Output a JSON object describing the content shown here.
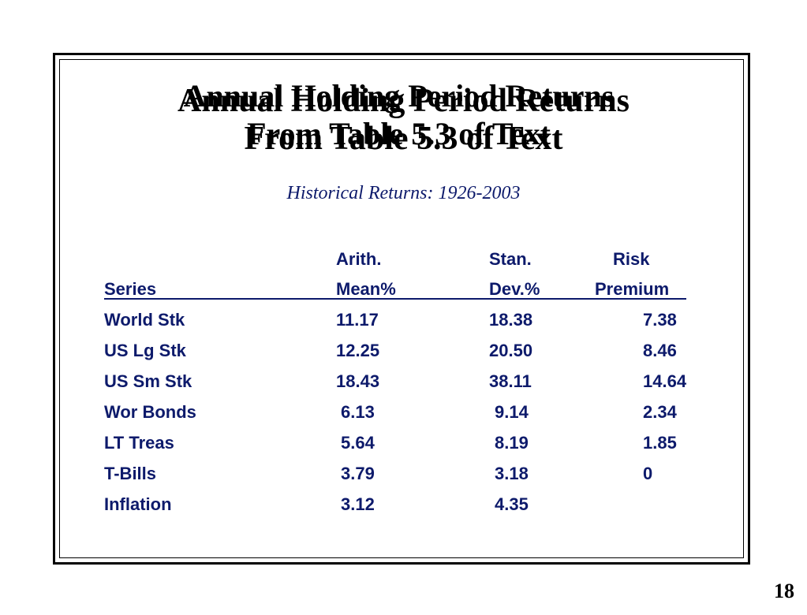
{
  "slide": {
    "title_line1": "Annual Holding Period Returns",
    "title_line2": "From Table 5.3 of Text",
    "subtitle": "Historical Returns: 1926-2003",
    "page_number": "18"
  },
  "table": {
    "header_top": [
      "",
      "Arith.",
      "Stan.",
      "Risk"
    ],
    "header_bottom": [
      "Series",
      "Mean%",
      "Dev.%",
      "Premium"
    ],
    "rows": [
      {
        "series": "World Stk",
        "mean": "11.17",
        "dev": "18.38",
        "premium": "7.38"
      },
      {
        "series": "US Lg Stk",
        "mean": "12.25",
        "dev": "20.50",
        "premium": "8.46"
      },
      {
        "series": "US Sm Stk",
        "mean": "18.43",
        "dev": "38.11",
        "premium": "14.64"
      },
      {
        "series": "Wor Bonds",
        "mean": "6.13",
        "dev": "9.14",
        "premium": "2.34"
      },
      {
        "series": "LT Treas",
        "mean": "5.64",
        "dev": "8.19",
        "premium": "1.85"
      },
      {
        "series": "T-Bills",
        "mean": "3.79",
        "dev": "3.18",
        "premium": "0"
      },
      {
        "series": "Inflation",
        "mean": "3.12",
        "dev": "4.35",
        "premium": ""
      }
    ]
  }
}
